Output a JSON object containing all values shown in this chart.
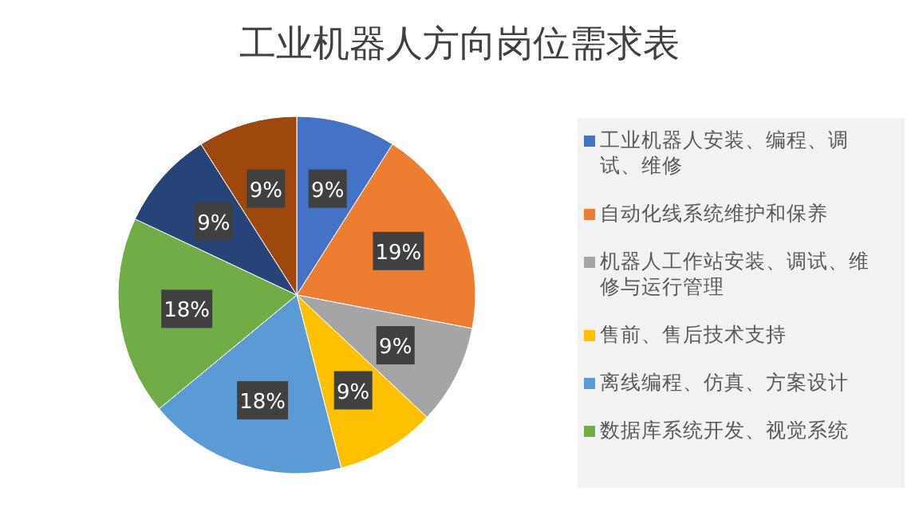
{
  "chart_data": {
    "type": "pie",
    "title": "工业机器人方向岗位需求表",
    "categories": [
      "工业机器人安装、编程、调试、维修",
      "自动化线系统维护和保养",
      "机器人工作站安装、调试、维修与运行管理",
      "售前、售后技术支持",
      "离线编程、仿真、方案设计",
      "数据库系统开发、视觉系统",
      null,
      null
    ],
    "values": [
      9,
      19,
      9,
      9,
      18,
      18,
      9,
      9
    ],
    "colors": [
      "#4472c4",
      "#ed7d31",
      "#a5a5a5",
      "#ffc000",
      "#5b9bd5",
      "#70ad47",
      "#264478",
      "#9e480e"
    ],
    "value_labels": [
      "9%",
      "19%",
      "9%",
      "9%",
      "18%",
      "18%",
      "9%",
      "9%"
    ],
    "legend": "right"
  }
}
